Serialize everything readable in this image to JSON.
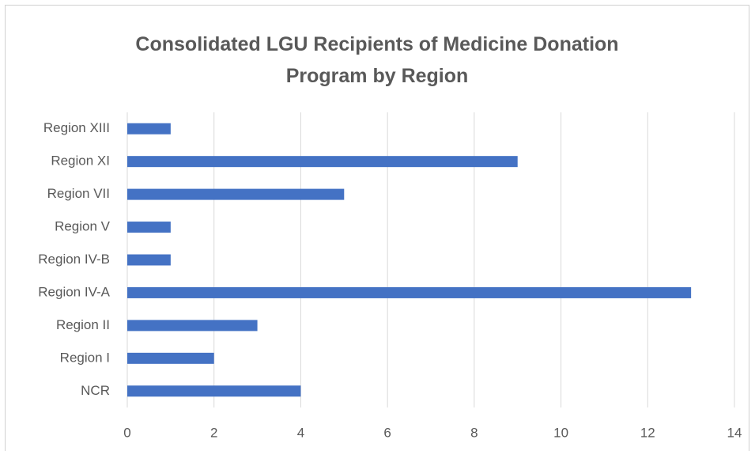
{
  "chart_data": {
    "type": "bar",
    "orientation": "horizontal",
    "title": "Consolidated LGU Recipients of Medicine Donation Program by Region",
    "categories": [
      "NCR",
      "Region I",
      "Region II",
      "Region IV-A",
      "Region IV-B",
      "Region V",
      "Region VII",
      "Region XI",
      "Region XIII"
    ],
    "values": [
      4,
      2,
      3,
      13,
      1,
      1,
      5,
      9,
      1
    ],
    "color": "#4472c4",
    "xlim": [
      0,
      14
    ],
    "xticks": [
      0,
      2,
      4,
      6,
      8,
      10,
      12,
      14
    ],
    "grid": true
  }
}
